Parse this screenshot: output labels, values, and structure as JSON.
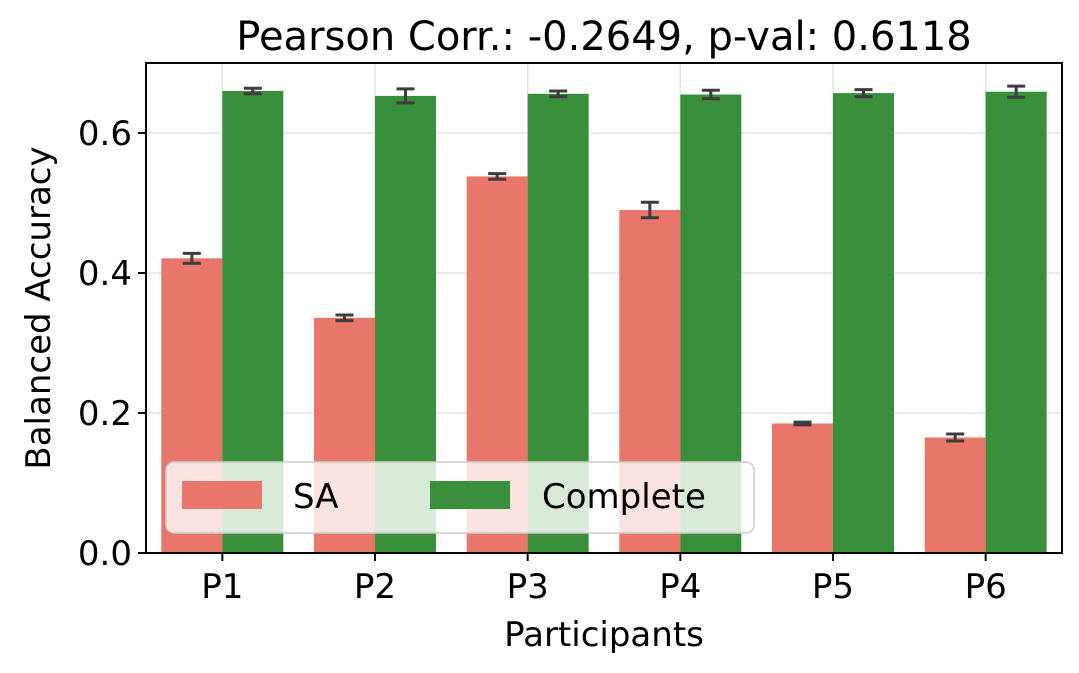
{
  "chart_data": {
    "type": "bar",
    "title": "Pearson Corr.: -0.2649, p-val: 0.6118",
    "xlabel": "Participants",
    "ylabel": "Balanced Accuracy",
    "categories": [
      "P1",
      "P2",
      "P3",
      "P4",
      "P5",
      "P6"
    ],
    "ylim": [
      0,
      0.7
    ],
    "yticks": [
      0.0,
      0.2,
      0.4,
      0.6
    ],
    "ytick_labels": [
      "0.0",
      "0.2",
      "0.4",
      "0.6"
    ],
    "grid": true,
    "legend_position": "lower-left",
    "series": [
      {
        "name": "SA",
        "color": "#e8766a",
        "values": [
          0.421,
          0.336,
          0.538,
          0.49,
          0.185,
          0.165
        ],
        "errors": [
          0.007,
          0.004,
          0.004,
          0.011,
          0.002,
          0.005
        ]
      },
      {
        "name": "Complete",
        "color": "#3a8f3a",
        "values": [
          0.66,
          0.653,
          0.656,
          0.655,
          0.657,
          0.659
        ],
        "errors": [
          0.004,
          0.01,
          0.004,
          0.006,
          0.005,
          0.008
        ]
      }
    ],
    "error_bar_color": "#3d3d3d"
  }
}
